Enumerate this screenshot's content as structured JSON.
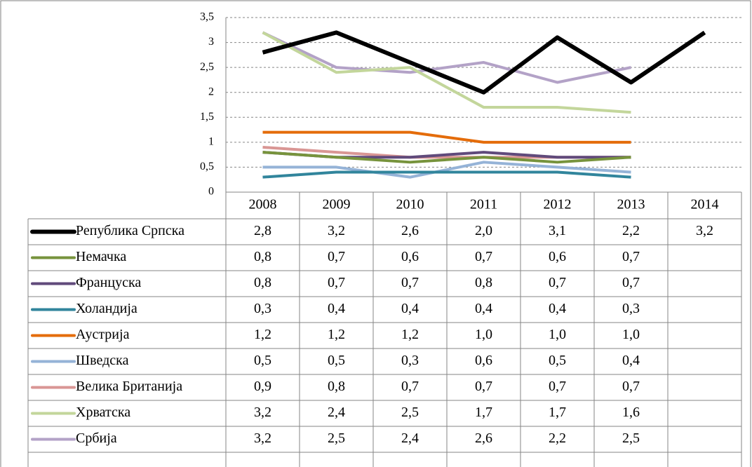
{
  "chart_data": {
    "type": "line",
    "categories": [
      "2008",
      "2009",
      "2010",
      "2011",
      "2012",
      "2013",
      "2014"
    ],
    "ylim": [
      0,
      3.5
    ],
    "yticks": [
      0,
      {
        "value": 0.5,
        "label": "0,5"
      },
      1,
      {
        "value": 1.5,
        "label": "1,5"
      },
      2,
      {
        "value": 2.5,
        "label": "2,5"
      },
      3,
      {
        "value": 3.5,
        "label": "3,5"
      }
    ],
    "grid": true,
    "series": [
      {
        "name": "Република Српска",
        "color": "#000000",
        "values": [
          2.8,
          3.2,
          2.6,
          2.0,
          3.1,
          2.2,
          3.2
        ],
        "value_labels": [
          "2,8",
          "3,2",
          "2,6",
          "2,0",
          "3,1",
          "2,2",
          "3,2"
        ]
      },
      {
        "name": "Немачка",
        "color": "#77933c",
        "values": [
          0.8,
          0.7,
          0.6,
          0.7,
          0.6,
          0.7,
          null
        ],
        "value_labels": [
          "0,8",
          "0,7",
          "0,6",
          "0,7",
          "0,6",
          "0,7",
          null
        ]
      },
      {
        "name": "Француска",
        "color": "#604a7b",
        "values": [
          0.8,
          0.7,
          0.7,
          0.8,
          0.7,
          0.7,
          null
        ],
        "value_labels": [
          "0,8",
          "0,7",
          "0,7",
          "0,8",
          "0,7",
          "0,7",
          null
        ]
      },
      {
        "name": "Холандија",
        "color": "#31859c",
        "values": [
          0.3,
          0.4,
          0.4,
          0.4,
          0.4,
          0.3,
          null
        ],
        "value_labels": [
          "0,3",
          "0,4",
          "0,4",
          "0,4",
          "0,4",
          "0,3",
          null
        ]
      },
      {
        "name": "Аустрија",
        "color": "#e46c0a",
        "values": [
          1.2,
          1.2,
          1.2,
          1.0,
          1.0,
          1.0,
          null
        ],
        "value_labels": [
          "1,2",
          "1,2",
          "1,2",
          "1,0",
          "1,0",
          "1,0",
          null
        ]
      },
      {
        "name": "Шведска",
        "color": "#95b3d7",
        "values": [
          0.5,
          0.5,
          0.3,
          0.6,
          0.5,
          0.4,
          null
        ],
        "value_labels": [
          "0,5",
          "0,5",
          "0,3",
          "0,6",
          "0,5",
          "0,4",
          null
        ]
      },
      {
        "name": "Велика Британија",
        "color": "#d99694",
        "values": [
          0.9,
          0.8,
          0.7,
          0.7,
          0.7,
          0.7,
          null
        ],
        "value_labels": [
          "0,9",
          "0,8",
          "0,7",
          "0,7",
          "0,7",
          "0,7",
          null
        ]
      },
      {
        "name": "Хрватска",
        "color": "#c3d69b",
        "values": [
          3.2,
          2.4,
          2.5,
          1.7,
          1.7,
          1.6,
          null
        ],
        "value_labels": [
          "3,2",
          "2,4",
          "2,5",
          "1,7",
          "1,7",
          "1,6",
          null
        ]
      },
      {
        "name": "Србија",
        "color": "#b3a2c7",
        "values": [
          3.2,
          2.5,
          2.4,
          2.6,
          2.2,
          2.5,
          null
        ],
        "value_labels": [
          "3,2",
          "2,5",
          "2,4",
          "2,6",
          "2,2",
          "2,5",
          null
        ]
      }
    ]
  }
}
